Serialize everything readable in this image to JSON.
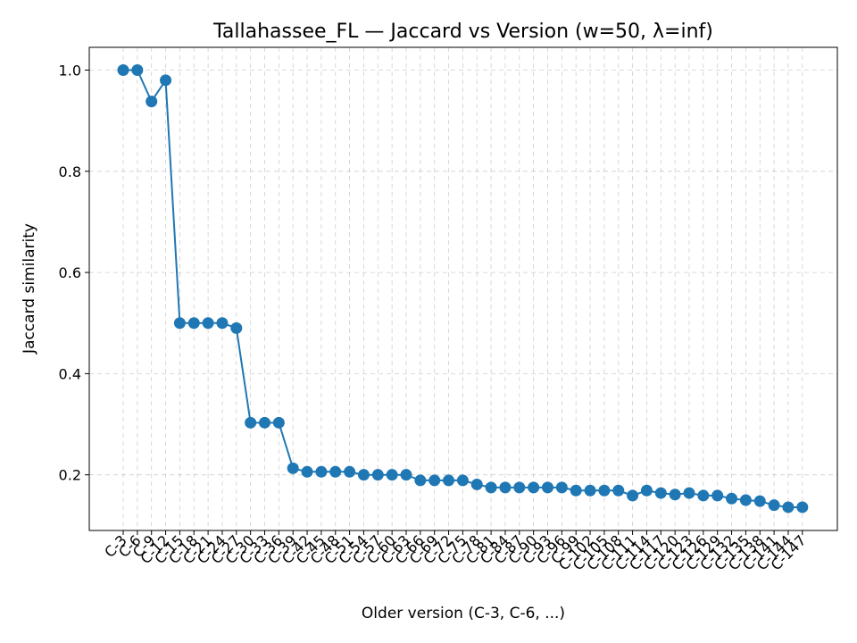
{
  "chart_data": {
    "type": "line",
    "title": "Tallahassee_FL — Jaccard vs Version (w=50, λ=inf)",
    "xlabel": "Older version (C-3, C-6, ...)",
    "ylabel": "Jaccard similarity",
    "ylim": [
      0.09,
      1.045
    ],
    "yticks": [
      0.2,
      0.4,
      0.6,
      0.8,
      1.0
    ],
    "ytick_labels": [
      "0.2",
      "0.4",
      "0.6",
      "0.8",
      "1.0"
    ],
    "grid": true,
    "line_color": "#1f77b4",
    "categories": [
      "C-3",
      "C-6",
      "C-9",
      "C-12",
      "C-15",
      "C-18",
      "C-21",
      "C-24",
      "C-27",
      "C-30",
      "C-33",
      "C-36",
      "C-39",
      "C-42",
      "C-45",
      "C-48",
      "C-51",
      "C-54",
      "C-57",
      "C-60",
      "C-63",
      "C-66",
      "C-69",
      "C-72",
      "C-75",
      "C-78",
      "C-81",
      "C-84",
      "C-87",
      "C-90",
      "C-93",
      "C-96",
      "C-99",
      "C-102",
      "C-105",
      "C-108",
      "C-111",
      "C-114",
      "C-117",
      "C-120",
      "C-123",
      "C-126",
      "C-129",
      "C-132",
      "C-135",
      "C-138",
      "C-141",
      "C-144",
      "C-147"
    ],
    "values": [
      1.0,
      1.0,
      0.938,
      0.98,
      0.5,
      0.5,
      0.5,
      0.5,
      0.49,
      0.303,
      0.303,
      0.303,
      0.213,
      0.206,
      0.206,
      0.206,
      0.206,
      0.2,
      0.2,
      0.2,
      0.2,
      0.189,
      0.189,
      0.189,
      0.189,
      0.181,
      0.175,
      0.175,
      0.175,
      0.175,
      0.175,
      0.175,
      0.169,
      0.169,
      0.169,
      0.169,
      0.159,
      0.169,
      0.164,
      0.161,
      0.164,
      0.159,
      0.159,
      0.153,
      0.15,
      0.148,
      0.14,
      0.136,
      0.136
    ]
  }
}
